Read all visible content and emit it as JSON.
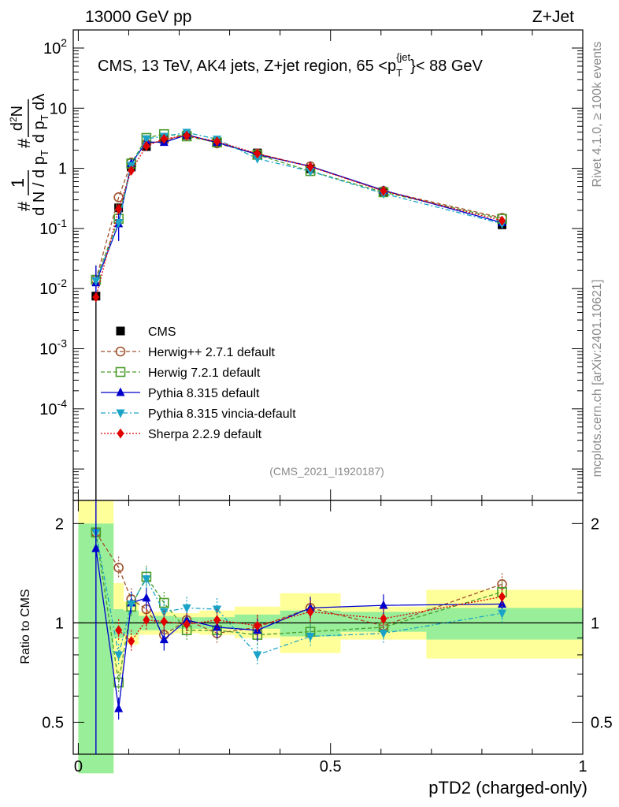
{
  "header": {
    "left": "13000 GeV pp",
    "right": "Z+Jet"
  },
  "side_labels": {
    "top": "Rivet 4.1.0, ≥ 100k events",
    "bottom": "mcplots.cern.ch [arXiv:2401.10621]"
  },
  "chart_data": [
    {
      "type": "scatter",
      "panel": "main",
      "title": "CMS, 13 TeV, AK4 jets, Z+jet region, 65 <p_T^{jet}< 88 GeV",
      "ylabel": "1/(dN/dpT) d²N/(dpT dλ)",
      "yscale": "log",
      "ylim": [
        3e-06,
        200
      ],
      "xlim": [
        -0.01,
        1.0
      ],
      "watermark": "(CMS_2021_I1920187)",
      "tick_labels": {
        "y": [
          "10^{-4}",
          "10^{-3}",
          "10^{-2}",
          "10^{-1}",
          "1",
          "10",
          "10^{2}"
        ]
      },
      "legend": {
        "position": "lower-left",
        "entries": [
          "CMS",
          "Herwig++ 2.7.1 default",
          "Herwig 7.2.1 default",
          "Pythia 8.315 default",
          "Pythia 8.315 vincia-default",
          "Sherpa 2.2.9 default"
        ]
      },
      "series": [
        {
          "name": "CMS",
          "color": "#000000",
          "marker": "square-filled",
          "x": [
            0.035,
            0.08,
            0.105,
            0.135,
            0.17,
            0.215,
            0.275,
            0.355,
            0.46,
            0.605,
            0.84
          ],
          "y": [
            0.0075,
            0.22,
            1.05,
            2.3,
            3.05,
            3.55,
            2.75,
            1.8,
            0.98,
            0.41,
            0.115
          ]
        },
        {
          "name": "Herwig++ 2.7.1 default",
          "color": "#a0522d",
          "marker": "circle-open",
          "dash": "5,3",
          "x": [
            0.035,
            0.08,
            0.105,
            0.135,
            0.17,
            0.215,
            0.275,
            0.355,
            0.46,
            0.605,
            0.84
          ],
          "y": [
            0.014,
            0.33,
            1.25,
            2.55,
            2.9,
            3.65,
            2.6,
            1.75,
            1.08,
            0.42,
            0.15
          ]
        },
        {
          "name": "Herwig 7.2.1 default",
          "color": "#4a9c2a",
          "marker": "square-open",
          "dash": "5,3",
          "x": [
            0.035,
            0.08,
            0.105,
            0.135,
            0.17,
            0.215,
            0.275,
            0.355,
            0.46,
            0.605,
            0.84
          ],
          "y": [
            0.014,
            0.145,
            1.2,
            3.2,
            3.7,
            3.4,
            2.7,
            1.68,
            0.9,
            0.4,
            0.145
          ]
        },
        {
          "name": "Pythia 8.315 default",
          "color": "#0000cc",
          "marker": "triangle-up-filled",
          "dash": "",
          "x": [
            0.035,
            0.08,
            0.105,
            0.135,
            0.17,
            0.215,
            0.275,
            0.355,
            0.46,
            0.605,
            0.84
          ],
          "y": [
            0.0125,
            0.12,
            1.2,
            2.75,
            2.7,
            3.6,
            2.7,
            1.7,
            1.08,
            0.43,
            0.125
          ]
        },
        {
          "name": "Pythia 8.315 vincia-default",
          "color": "#1aa3c6",
          "marker": "triangle-down-filled",
          "dash": "6,3,2,3",
          "x": [
            0.035,
            0.08,
            0.105,
            0.135,
            0.17,
            0.215,
            0.275,
            0.355,
            0.46,
            0.605,
            0.84
          ],
          "y": [
            0.0135,
            0.125,
            1.12,
            3.1,
            3.4,
            3.95,
            3.05,
            1.45,
            0.89,
            0.38,
            0.12
          ]
        },
        {
          "name": "Sherpa 2.2.9 default",
          "color": "#e00000",
          "marker": "diamond-filled",
          "dash": "2,2",
          "x": [
            0.035,
            0.08,
            0.105,
            0.135,
            0.17,
            0.215,
            0.275,
            0.355,
            0.46,
            0.605,
            0.84
          ],
          "y": [
            0.0072,
            0.21,
            0.92,
            2.35,
            3.1,
            3.5,
            2.8,
            1.75,
            1.06,
            0.42,
            0.135
          ]
        }
      ]
    },
    {
      "type": "scatter",
      "panel": "ratio",
      "ylabel": "Ratio to CMS",
      "xlabel": "pTD2 (charged-only)",
      "yscale": "log",
      "ylim": [
        0.4,
        2.35
      ],
      "xlim": [
        -0.01,
        1.0
      ],
      "tick_labels": {
        "x": [
          "0",
          "0.5",
          "1"
        ],
        "y": [
          "0.5",
          "1",
          "2"
        ]
      },
      "bands": {
        "bins": [
          [
            0.0,
            0.07
          ],
          [
            0.07,
            0.09
          ],
          [
            0.09,
            0.12
          ],
          [
            0.12,
            0.15
          ],
          [
            0.15,
            0.19
          ],
          [
            0.19,
            0.24
          ],
          [
            0.24,
            0.31
          ],
          [
            0.31,
            0.4
          ],
          [
            0.4,
            0.52
          ],
          [
            0.52,
            0.69
          ],
          [
            0.69,
            1.0
          ]
        ],
        "inner": [
          [
            0.35,
            2.0
          ],
          [
            0.9,
            1.1
          ],
          [
            0.92,
            1.09
          ],
          [
            0.95,
            1.05
          ],
          [
            0.95,
            1.05
          ],
          [
            0.96,
            1.04
          ],
          [
            0.96,
            1.04
          ],
          [
            0.96,
            1.06
          ],
          [
            0.91,
            1.09
          ],
          [
            0.94,
            1.08
          ],
          [
            0.89,
            1.11
          ]
        ],
        "outer": [
          [
            0.35,
            2.35
          ],
          [
            0.7,
            1.32
          ],
          [
            0.86,
            1.16
          ],
          [
            0.92,
            1.08
          ],
          [
            0.92,
            1.08
          ],
          [
            0.93,
            1.07
          ],
          [
            0.92,
            1.09
          ],
          [
            0.9,
            1.12
          ],
          [
            0.81,
            1.23
          ],
          [
            0.89,
            1.12
          ],
          [
            0.78,
            1.26
          ]
        ],
        "inner_color": "#99ee99",
        "outer_color": "#ffff99"
      },
      "series": [
        {
          "name": "Herwig++ 2.7.1 default",
          "color": "#a0522d",
          "marker": "circle-open",
          "dash": "5,3",
          "x": [
            0.035,
            0.08,
            0.105,
            0.135,
            0.17,
            0.215,
            0.275,
            0.355,
            0.46,
            0.605,
            0.84
          ],
          "y": [
            1.88,
            1.47,
            1.18,
            1.1,
            0.92,
            1.02,
            0.93,
            0.97,
            1.11,
            0.98,
            1.31
          ]
        },
        {
          "name": "Herwig 7.2.1 default",
          "color": "#4a9c2a",
          "marker": "square-open",
          "dash": "5,3",
          "x": [
            0.035,
            0.08,
            0.105,
            0.135,
            0.17,
            0.215,
            0.275,
            0.355,
            0.46,
            0.605,
            0.84
          ],
          "y": [
            1.88,
            0.66,
            1.12,
            1.38,
            1.15,
            0.95,
            0.95,
            0.92,
            0.94,
            0.97,
            1.24
          ]
        },
        {
          "name": "Pythia 8.315 default",
          "color": "#0000cc",
          "marker": "triangle-up-filled",
          "dash": "",
          "x": [
            0.035,
            0.08,
            0.105,
            0.135,
            0.17,
            0.215,
            0.275,
            0.355,
            0.46,
            0.605,
            0.84
          ],
          "y": [
            1.68,
            0.55,
            1.15,
            1.19,
            0.89,
            1.02,
            0.97,
            0.95,
            1.11,
            1.13,
            1.14
          ]
        },
        {
          "name": "Pythia 8.315 vincia-default",
          "color": "#1aa3c6",
          "marker": "triangle-down-filled",
          "dash": "6,3,2,3",
          "x": [
            0.035,
            0.08,
            0.105,
            0.135,
            0.17,
            0.215,
            0.275,
            0.355,
            0.46,
            0.605,
            0.84
          ],
          "y": [
            1.88,
            0.8,
            1.14,
            1.36,
            1.08,
            1.11,
            1.1,
            0.8,
            0.91,
            0.93,
            1.07
          ]
        },
        {
          "name": "Sherpa 2.2.9 default",
          "color": "#e00000",
          "marker": "diamond-filled",
          "dash": "2,2",
          "x": [
            0.035,
            0.08,
            0.105,
            0.135,
            0.17,
            0.215,
            0.275,
            0.355,
            0.46,
            0.605,
            0.84
          ],
          "y": [
            0.0,
            0.95,
            0.88,
            1.02,
            1.01,
            0.99,
            1.02,
            0.98,
            1.08,
            1.03,
            1.2
          ]
        }
      ]
    }
  ]
}
